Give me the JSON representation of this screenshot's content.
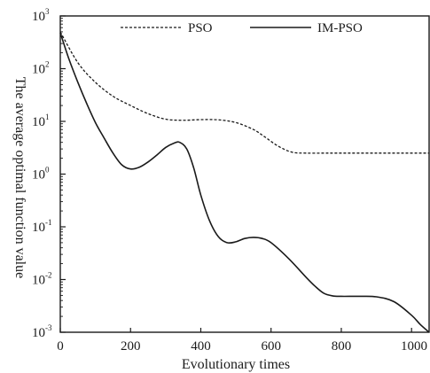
{
  "chart_data": {
    "type": "line",
    "xlabel": "Evolutionary times",
    "ylabel": "The average optimal function value",
    "xlim": [
      0,
      1050
    ],
    "ylim": [
      0.001,
      1000
    ],
    "y_scale": "log",
    "grid": false,
    "legend_position": "top",
    "x_ticks": [
      {
        "value": 0,
        "label": "0"
      },
      {
        "value": 200,
        "label": "200"
      },
      {
        "value": 400,
        "label": "400"
      },
      {
        "value": 600,
        "label": "600"
      },
      {
        "value": 800,
        "label": "800"
      },
      {
        "value": 1000,
        "label": "1000"
      }
    ],
    "y_ticks": [
      {
        "value": 1000,
        "base": "10",
        "exp": "3"
      },
      {
        "value": 100,
        "base": "10",
        "exp": "2"
      },
      {
        "value": 10,
        "base": "10",
        "exp": "1"
      },
      {
        "value": 1,
        "base": "10",
        "exp": "0"
      },
      {
        "value": 0.1,
        "base": "10",
        "exp": "-1"
      },
      {
        "value": 0.01,
        "base": "10",
        "exp": "-2"
      },
      {
        "value": 0.001,
        "base": "10",
        "exp": "-3"
      }
    ],
    "series": [
      {
        "name": "PSO",
        "style": "dashed",
        "color": "#1a1a1a",
        "x": [
          0,
          50,
          100,
          150,
          200,
          250,
          300,
          350,
          400,
          450,
          500,
          550,
          580,
          620,
          660,
          700,
          750,
          800,
          900,
          1000,
          1050
        ],
        "y": [
          500,
          130,
          55,
          30,
          20,
          14,
          11,
          10.5,
          10.8,
          10.7,
          9.5,
          7.0,
          5.2,
          3.4,
          2.6,
          2.5,
          2.5,
          2.5,
          2.5,
          2.5,
          2.5
        ]
      },
      {
        "name": "IM-PSO",
        "style": "solid",
        "color": "#1a1a1a",
        "x": [
          0,
          25,
          50,
          75,
          100,
          125,
          150,
          175,
          200,
          225,
          250,
          275,
          300,
          325,
          340,
          360,
          380,
          400,
          425,
          450,
          475,
          500,
          525,
          550,
          575,
          600,
          650,
          700,
          725,
          750,
          775,
          800,
          850,
          900,
          950,
          1000,
          1025,
          1050
        ],
        "y": [
          480,
          150,
          55,
          22,
          9.5,
          4.8,
          2.5,
          1.5,
          1.25,
          1.35,
          1.7,
          2.3,
          3.2,
          3.9,
          4.0,
          3.0,
          1.3,
          0.4,
          0.13,
          0.065,
          0.05,
          0.052,
          0.06,
          0.063,
          0.06,
          0.05,
          0.025,
          0.011,
          0.0075,
          0.0055,
          0.0049,
          0.0048,
          0.0048,
          0.0047,
          0.0038,
          0.0021,
          0.0014,
          0.001
        ]
      }
    ]
  }
}
